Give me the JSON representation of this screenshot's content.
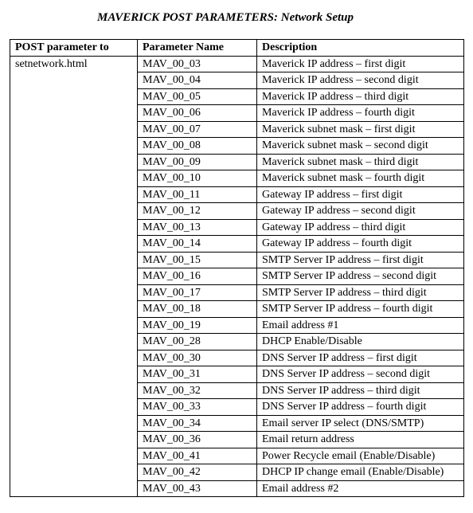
{
  "title": {
    "label": "MAVERICK POST PARAMETERS:",
    "sub": "  Network Setup"
  },
  "table": {
    "headers": {
      "post_to": "POST parameter to",
      "param_name": "Parameter Name",
      "description": "Description"
    },
    "post_to_value": "setnetwork.html",
    "rows": [
      {
        "name": "MAV_00_03",
        "desc": "Maverick IP address – first digit"
      },
      {
        "name": "MAV_00_04",
        "desc": "Maverick IP address – second digit"
      },
      {
        "name": "MAV_00_05",
        "desc": "Maverick IP address – third digit"
      },
      {
        "name": "MAV_00_06",
        "desc": "Maverick IP address – fourth digit"
      },
      {
        "name": "MAV_00_07",
        "desc": "Maverick subnet mask – first digit"
      },
      {
        "name": "MAV_00_08",
        "desc": "Maverick subnet mask – second digit"
      },
      {
        "name": "MAV_00_09",
        "desc": "Maverick subnet mask – third digit"
      },
      {
        "name": "MAV_00_10",
        "desc": "Maverick subnet mask – fourth digit"
      },
      {
        "name": "MAV_00_11",
        "desc": "Gateway IP address – first digit"
      },
      {
        "name": "MAV_00_12",
        "desc": "Gateway IP address – second digit"
      },
      {
        "name": "MAV_00_13",
        "desc": "Gateway IP address – third digit"
      },
      {
        "name": "MAV_00_14",
        "desc": "Gateway IP address – fourth digit"
      },
      {
        "name": "MAV_00_15",
        "desc": "SMTP Server IP address – first digit"
      },
      {
        "name": "MAV_00_16",
        "desc": "SMTP Server IP address – second digit"
      },
      {
        "name": "MAV_00_17",
        "desc": "SMTP Server IP address – third digit"
      },
      {
        "name": "MAV_00_18",
        "desc": "SMTP Server IP address – fourth digit"
      },
      {
        "name": "MAV_00_19",
        "desc": "Email address #1"
      },
      {
        "name": "MAV_00_28",
        "desc": "DHCP Enable/Disable"
      },
      {
        "name": "MAV_00_30",
        "desc": "DNS Server IP address – first digit"
      },
      {
        "name": "MAV_00_31",
        "desc": "DNS Server IP address – second digit"
      },
      {
        "name": "MAV_00_32",
        "desc": "DNS Server IP address – third digit"
      },
      {
        "name": "MAV_00_33",
        "desc": "DNS Server IP address – fourth digit"
      },
      {
        "name": "MAV_00_34",
        "desc": "Email server IP select (DNS/SMTP)"
      },
      {
        "name": "MAV_00_36",
        "desc": "Email return address"
      },
      {
        "name": "MAV_00_41",
        "desc": "Power Recycle email (Enable/Disable)"
      },
      {
        "name": "MAV_00_42",
        "desc": "DHCP IP change email (Enable/Disable)"
      },
      {
        "name": "MAV_00_43",
        "desc": "Email address #2"
      }
    ]
  }
}
